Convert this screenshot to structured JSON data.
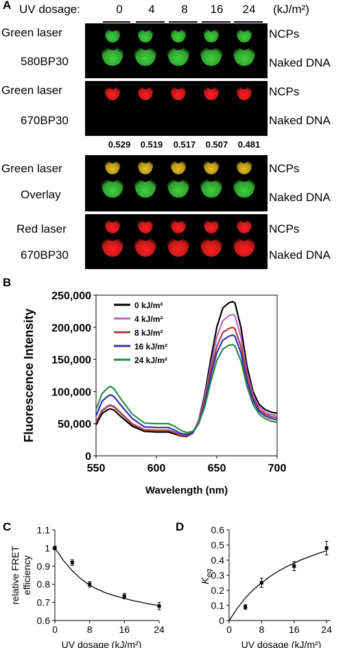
{
  "panel_labels": {
    "a": "A",
    "b": "B",
    "c": "C",
    "d": "D"
  },
  "uv_dosage": {
    "label": "UV dosage:",
    "unit": "(kJ/m²)",
    "doses": [
      "0",
      "4",
      "8",
      "16",
      "24"
    ]
  },
  "gels": [
    {
      "line1": "Green laser",
      "line2": "580BP30",
      "top_band": "NCPs",
      "bottom_band": "Naked DNA"
    },
    {
      "line1": "Green laser",
      "line2": "670BP30",
      "top_band": "NCPs",
      "bottom_band": "Naked DNA"
    },
    {
      "line1": "Green laser",
      "line2": "Overlay",
      "top_band": "NCPs",
      "bottom_band": "Naked DNA"
    },
    {
      "line1": "Red laser",
      "line2": "670BP30",
      "top_band": "NCPs",
      "bottom_band": "Naked DNA"
    }
  ],
  "fret_values": [
    "0.529",
    "0.519",
    "0.517",
    "0.507",
    "0.481"
  ],
  "colors": {
    "green": "#3fd23f",
    "red": "#ff2020",
    "yellow": "#e8c020"
  },
  "chart_data": [
    {
      "type": "line",
      "panel": "B",
      "xlabel": "Wavelength (nm)",
      "ylabel": "Fluorescence Intensity",
      "xlim": [
        550,
        700
      ],
      "ylim": [
        0,
        250000
      ],
      "x_ticks": [
        "550",
        "600",
        "650",
        "700"
      ],
      "y_ticks": [
        "0",
        "50,000",
        "100,000",
        "150,000",
        "200,000",
        "250,000"
      ],
      "legend_position": "top-left",
      "x": [
        550,
        555,
        560,
        562,
        565,
        570,
        580,
        590,
        600,
        610,
        615,
        620,
        625,
        630,
        635,
        640,
        645,
        650,
        655,
        660,
        663,
        665,
        670,
        675,
        680,
        685,
        690,
        695,
        700
      ],
      "series": [
        {
          "name": "0 kJ/m²",
          "color": "#000000",
          "values": [
            48000,
            66000,
            72000,
            73000,
            71000,
            62000,
            46000,
            38000,
            37000,
            37000,
            34000,
            31000,
            30000,
            35000,
            55000,
            95000,
            150000,
            200000,
            230000,
            238000,
            240000,
            238000,
            200000,
            140000,
            100000,
            80000,
            72000,
            68000,
            66000
          ]
        },
        {
          "name": "4 kJ/m²",
          "color": "#c060c0",
          "values": [
            52000,
            71000,
            78000,
            79000,
            77000,
            68000,
            50000,
            41000,
            40000,
            40000,
            37000,
            33000,
            32000,
            36000,
            54000,
            90000,
            140000,
            185000,
            210000,
            218000,
            220000,
            218000,
            185000,
            130000,
            95000,
            76000,
            68000,
            64000,
            62000
          ]
        },
        {
          "name": "8 kJ/m²",
          "color": "#a04040",
          "values": [
            52000,
            70000,
            77000,
            78000,
            76000,
            67000,
            49000,
            40000,
            39000,
            39000,
            36000,
            32000,
            31000,
            35000,
            52000,
            85000,
            132000,
            170000,
            192000,
            198000,
            200000,
            198000,
            170000,
            122000,
            90000,
            72000,
            65000,
            61000,
            59000
          ]
        },
        {
          "name": "16 kJ/m²",
          "color": "#3030b0",
          "values": [
            62000,
            85000,
            93000,
            95000,
            92000,
            80000,
            58000,
            45000,
            44000,
            44000,
            40000,
            35000,
            33000,
            36000,
            50000,
            80000,
            124000,
            160000,
            180000,
            186000,
            188000,
            186000,
            160000,
            116000,
            86000,
            69000,
            62000,
            58000,
            56000
          ]
        },
        {
          "name": "24 kJ/m²",
          "color": "#2a8a4a",
          "values": [
            72000,
            97000,
            106000,
            108000,
            104000,
            90000,
            65000,
            51000,
            50000,
            50000,
            46000,
            40000,
            36000,
            38000,
            50000,
            76000,
            115000,
            148000,
            166000,
            172000,
            173000,
            171000,
            148000,
            108000,
            80000,
            65000,
            58000,
            54000,
            52000
          ]
        }
      ]
    },
    {
      "type": "scatter",
      "panel": "C",
      "xlabel": "UV dosage (kJ/m²)",
      "ylabel": "relative FRET efficiency",
      "xlim": [
        0,
        24
      ],
      "ylim": [
        0.6,
        1.1
      ],
      "x_ticks": [
        "0",
        "8",
        "16",
        "24"
      ],
      "y_ticks": [
        "0.6",
        "0.7",
        "0.8",
        "0.9",
        "1",
        "1.1"
      ],
      "x": [
        0,
        4,
        8,
        16,
        24
      ],
      "values": [
        1.0,
        0.92,
        0.8,
        0.735,
        0.68
      ],
      "errors": [
        0.01,
        0.015,
        0.015,
        0.015,
        0.02
      ],
      "fit_x": [
        0,
        2,
        4,
        6,
        8,
        10,
        12,
        14,
        16,
        18,
        20,
        22,
        24
      ],
      "fit_y": [
        1.0,
        0.93,
        0.875,
        0.83,
        0.795,
        0.77,
        0.75,
        0.735,
        0.722,
        0.71,
        0.7,
        0.69,
        0.683
      ]
    },
    {
      "type": "scatter",
      "panel": "D",
      "xlabel": "UV dosage (kJ/m²)",
      "ylabel": "K",
      "ylabel_subscript": "eq",
      "xlim": [
        0,
        25
      ],
      "ylim": [
        0,
        0.6
      ],
      "x_ticks": [
        "0",
        "8",
        "16",
        "24"
      ],
      "y_ticks": [
        "0",
        "0.1",
        "0.2",
        "0.3",
        "0.4",
        "0.5",
        "0.6"
      ],
      "x": [
        4,
        8,
        16,
        24
      ],
      "values": [
        0.09,
        0.25,
        0.36,
        0.48
      ],
      "errors": [
        0.015,
        0.03,
        0.03,
        0.045
      ],
      "fit_x": [
        0,
        2,
        4,
        6,
        8,
        10,
        12,
        14,
        16,
        18,
        20,
        22,
        24
      ],
      "fit_y": [
        0,
        0.08,
        0.15,
        0.205,
        0.25,
        0.29,
        0.325,
        0.355,
        0.38,
        0.405,
        0.425,
        0.445,
        0.462
      ]
    }
  ]
}
